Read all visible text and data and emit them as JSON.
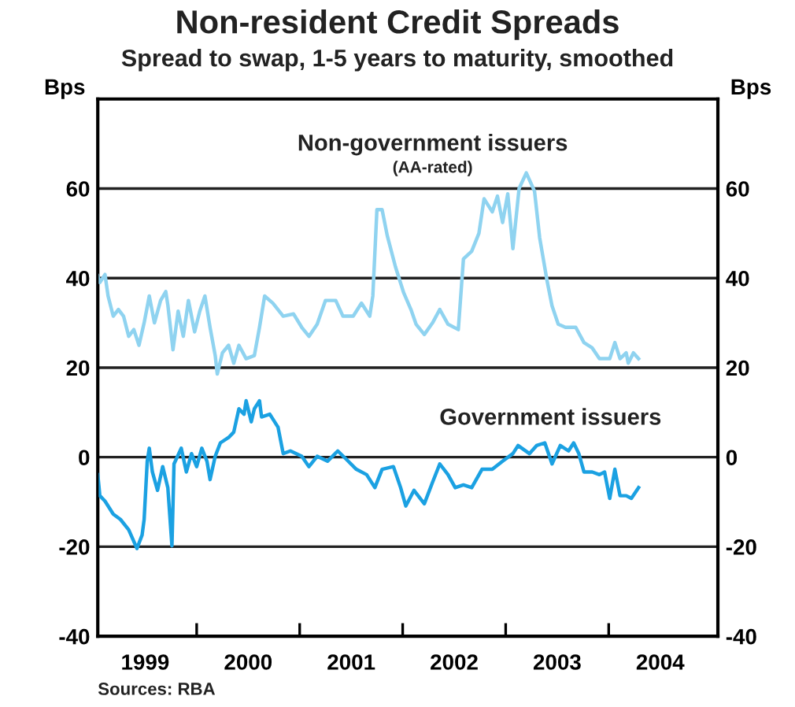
{
  "chart_data": {
    "type": "line",
    "title": "Non-resident Credit Spreads",
    "subtitle": "Spread to swap, 1-5 years to maturity, smoothed",
    "ylabel": "Bps",
    "y2label": "Bps",
    "annotations": [
      "(AA-rated)",
      "Sources: RBA"
    ],
    "series": [
      {
        "name": "Non-government issuers",
        "color": "#8fd3f0",
        "x": [
          1999.04,
          1999.06,
          1999.11,
          1999.14,
          1999.19,
          1999.24,
          1999.29,
          1999.34,
          1999.39,
          1999.44,
          1999.49,
          1999.54,
          1999.59,
          1999.65,
          1999.7,
          1999.72,
          1999.77,
          1999.82,
          1999.87,
          1999.92,
          1999.98,
          2000.03,
          2000.08,
          2000.13,
          2000.18,
          2000.2,
          2000.25,
          2000.31,
          2000.36,
          2000.41,
          2000.48,
          2000.56,
          2000.61,
          2000.66,
          2000.74,
          2000.84,
          2000.94,
          2001.02,
          2001.09,
          2001.17,
          2001.25,
          2001.35,
          2001.42,
          2001.52,
          2001.6,
          2001.68,
          2001.71,
          2001.75,
          2001.8,
          2001.85,
          2001.93,
          2002.01,
          2002.08,
          2002.13,
          2002.21,
          2002.29,
          2002.36,
          2002.44,
          2002.54,
          2002.59,
          2002.67,
          2002.74,
          2002.79,
          2002.87,
          2002.92,
          2002.97,
          2003.02,
          2003.07,
          2003.13,
          2003.2,
          2003.28,
          2003.33,
          2003.4,
          2003.45,
          2003.51,
          2003.58,
          2003.68,
          2003.76,
          2003.84,
          2003.91,
          2004.01,
          2004.06,
          2004.11,
          2004.17,
          2004.19,
          2004.24,
          2004.29
        ],
        "values": [
          40.5,
          39,
          40.8,
          36,
          31.5,
          33,
          31.5,
          27,
          28.5,
          25,
          30,
          36,
          30,
          35,
          37,
          34,
          24,
          32.6,
          27,
          35,
          28,
          32.6,
          36,
          29,
          22.7,
          18.6,
          23.3,
          25,
          21,
          25,
          22,
          22.7,
          29,
          36,
          34.4,
          31.5,
          32,
          29,
          27,
          29.7,
          35,
          35,
          31.5,
          31.5,
          34.4,
          31.5,
          36,
          55.3,
          55.3,
          49.5,
          42.5,
          36.7,
          33,
          29.7,
          27.4,
          30,
          33,
          29.7,
          28.5,
          44.3,
          46,
          50,
          57.7,
          54.8,
          58.3,
          52.4,
          58.8,
          46.6,
          60,
          63.5,
          59.4,
          49,
          39.6,
          33.8,
          29.7,
          29,
          29,
          25.6,
          24.4,
          22,
          22,
          25.6,
          22,
          23.3,
          21,
          23.3,
          22
        ]
      },
      {
        "name": "Government issuers",
        "color": "#1ba1e2",
        "x": [
          1999.04,
          1999.06,
          1999.11,
          1999.19,
          1999.26,
          1999.34,
          1999.42,
          1999.47,
          1999.49,
          1999.52,
          1999.54,
          1999.57,
          1999.62,
          1999.67,
          1999.72,
          1999.76,
          1999.78,
          1999.85,
          1999.9,
          1999.95,
          2000.0,
          2000.05,
          2000.1,
          2000.13,
          2000.18,
          2000.23,
          2000.31,
          2000.36,
          2000.41,
          2000.46,
          2000.48,
          2000.53,
          2000.56,
          2000.61,
          2000.63,
          2000.71,
          2000.79,
          2000.84,
          2000.91,
          2001.02,
          2001.09,
          2001.17,
          2001.27,
          2001.37,
          2001.45,
          2001.55,
          2001.65,
          2001.73,
          2001.8,
          2001.91,
          2001.98,
          2002.03,
          2002.11,
          2002.21,
          2002.29,
          2002.36,
          2002.44,
          2002.51,
          2002.59,
          2002.67,
          2002.77,
          2002.87,
          2002.97,
          2003.07,
          2003.12,
          2003.23,
          2003.3,
          2003.38,
          2003.45,
          2003.53,
          2003.61,
          2003.66,
          2003.71,
          2003.76,
          2003.84,
          2003.91,
          2003.96,
          2004.01,
          2004.06,
          2004.11,
          2004.17,
          2004.22,
          2004.29
        ],
        "values": [
          -3.9,
          -8.6,
          -9.8,
          -12.7,
          -13.9,
          -16.2,
          -20.4,
          -17.4,
          -13.9,
          -0.9,
          2,
          -3.3,
          -7.4,
          -2.1,
          -6.8,
          -19.8,
          -1.5,
          2,
          -3.3,
          0.8,
          -2.1,
          2,
          -0.9,
          -5,
          0.2,
          3.2,
          4.4,
          5.6,
          10.8,
          9.6,
          12.6,
          7.9,
          10.8,
          12.6,
          9,
          9.6,
          6.7,
          0.8,
          1.4,
          0.2,
          -2.1,
          0.2,
          -0.9,
          1.4,
          -0.4,
          -2.7,
          -3.9,
          -6.8,
          -2.7,
          -2.1,
          -6.8,
          -10.9,
          -7.4,
          -10.4,
          -5.6,
          -1.5,
          -3.9,
          -6.8,
          -6.2,
          -6.8,
          -2.7,
          -2.7,
          -0.9,
          0.8,
          2.6,
          0.8,
          2.6,
          3.2,
          -1.5,
          2.6,
          1.4,
          3.2,
          0.8,
          -3.3,
          -3.3,
          -3.9,
          -3.3,
          -9.2,
          -2.7,
          -8.6,
          -8.6,
          -9.2,
          -6.8
        ]
      }
    ],
    "xlim": [
      1999.04,
      2005.06
    ],
    "xticks": [
      {
        "value": 1999.5,
        "label": "1999"
      },
      {
        "value": 2000,
        "label": null
      },
      {
        "value": 2000.5,
        "label": "2000"
      },
      {
        "value": 2001,
        "label": null
      },
      {
        "value": 2001.5,
        "label": "2001"
      },
      {
        "value": 2002,
        "label": null
      },
      {
        "value": 2002.5,
        "label": "2002"
      },
      {
        "value": 2003,
        "label": null
      },
      {
        "value": 2003.5,
        "label": "2003"
      },
      {
        "value": 2004,
        "label": null
      },
      {
        "value": 2004.5,
        "label": "2004"
      }
    ],
    "ylim": [
      -40,
      80
    ],
    "yticks": [
      -40,
      -20,
      0,
      20,
      40,
      60
    ],
    "y2lim": [
      -40,
      80
    ],
    "y2ticks": [
      -40,
      -20,
      0,
      20,
      40,
      60
    ],
    "grid": "y",
    "legend": false,
    "marker": "none",
    "line_style": "solid"
  }
}
